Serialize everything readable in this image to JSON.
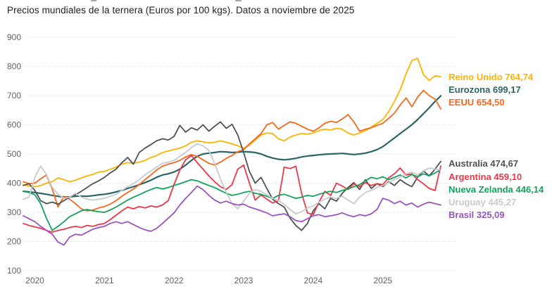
{
  "header": {
    "title": "Precios mundiales de la ternera (Euros por 100 kgs). Datos a noviembre de 2025"
  },
  "chart_data": {
    "type": "line",
    "title": "Precios mundiales de la ternera (Euros por 100 kgs). Datos a noviembre de 2025",
    "xlabel": "",
    "ylabel": "",
    "ylim": [
      100,
      900
    ],
    "y_ticks": [
      100,
      200,
      300,
      400,
      500,
      600,
      700,
      800,
      900
    ],
    "x_tick_labels": [
      "2020",
      "2021",
      "2022",
      "2023",
      "2024",
      "2025"
    ],
    "x_tick_values": [
      2020,
      2021,
      2022,
      2023,
      2024,
      2025
    ],
    "x_start_decimal_year": 2019.833,
    "x_step_months": 1,
    "grid": true,
    "legend_position": "right-edge-labels",
    "series": [
      {
        "name": "Reino Unido",
        "slug": "reino-unido",
        "color": "#FFB300",
        "final_value_label": "764,74",
        "display_label": "Reino Unido 764,74",
        "label_y": 110,
        "values": [
          395,
          390,
          388,
          392,
          400,
          405,
          418,
          412,
          405,
          410,
          418,
          425,
          430,
          438,
          440,
          448,
          455,
          465,
          470,
          468,
          472,
          478,
          488,
          495,
          505,
          510,
          515,
          520,
          528,
          540,
          545,
          542,
          538,
          540,
          545,
          540,
          535,
          528,
          520,
          530,
          548,
          565,
          572,
          570,
          552,
          545,
          558,
          565,
          570,
          568,
          572,
          580,
          585,
          582,
          588,
          585,
          572,
          565,
          572,
          580,
          592,
          605,
          618,
          645,
          680,
          720,
          775,
          820,
          828,
          772,
          752,
          768,
          764.74
        ]
      },
      {
        "name": "Eurozona",
        "slug": "eurozona",
        "color": "#2B6566",
        "final_value_label": "699,17",
        "display_label": "Eurozona 699,17",
        "label_y": 128,
        "values": [
          372,
          370,
          368,
          365,
          362,
          358,
          355,
          352,
          353,
          355,
          356,
          355,
          357,
          360,
          362,
          365,
          370,
          375,
          382,
          388,
          395,
          402,
          410,
          420,
          428,
          432,
          438,
          448,
          462,
          478,
          492,
          500,
          503,
          505,
          508,
          507,
          505,
          506,
          508,
          507,
          505,
          500,
          492,
          486,
          482,
          480,
          482,
          485,
          490,
          493,
          495,
          497,
          499,
          500,
          501,
          502,
          500,
          498,
          500,
          503,
          508,
          515,
          525,
          540,
          555,
          570,
          585,
          600,
          618,
          638,
          658,
          680,
          699.17
        ]
      },
      {
        "name": "EEUU",
        "slug": "eeuu",
        "color": "#F8671C",
        "final_value_label": "654,50",
        "display_label": "EEUU 654,50",
        "label_y": 146,
        "values": [
          405,
          398,
          400,
          415,
          428,
          380,
          318,
          355,
          345,
          330,
          312,
          305,
          308,
          315,
          320,
          328,
          340,
          355,
          368,
          380,
          395,
          412,
          428,
          445,
          458,
          465,
          470,
          478,
          490,
          498,
          492,
          480,
          468,
          462,
          472,
          485,
          495,
          508,
          515,
          535,
          552,
          570,
          600,
          608,
          585,
          598,
          610,
          605,
          595,
          585,
          578,
          590,
          605,
          612,
          608,
          620,
          635,
          610,
          578,
          585,
          590,
          598,
          605,
          622,
          640,
          668,
          692,
          662,
          695,
          718,
          700,
          688,
          654.5
        ]
      },
      {
        "name": "Australia",
        "slug": "australia",
        "color": "#4D5153",
        "final_value_label": "474,67",
        "display_label": "Australia 474,67",
        "label_y": 233,
        "values": [
          392,
          398,
          375,
          340,
          330,
          335,
          328,
          340,
          352,
          360,
          372,
          385,
          398,
          408,
          420,
          435,
          448,
          470,
          488,
          465,
          505,
          520,
          532,
          545,
          552,
          548,
          560,
          598,
          575,
          590,
          582,
          600,
          578,
          595,
          610,
          588,
          602,
          565,
          505,
          440,
          400,
          420,
          382,
          345,
          330,
          318,
          280,
          255,
          238,
          262,
          305,
          330,
          312,
          348,
          338,
          365,
          385,
          402,
          378,
          412,
          382,
          398,
          388,
          405,
          392,
          412,
          398,
          388,
          420,
          442,
          425,
          448,
          474.67
        ]
      },
      {
        "name": "Argentina",
        "slug": "argentina",
        "color": "#EF3648",
        "final_value_label": "459,10",
        "display_label": "Argentina 459,10",
        "label_y": 252,
        "values": [
          262,
          255,
          250,
          245,
          238,
          232,
          238,
          242,
          248,
          252,
          248,
          255,
          252,
          258,
          262,
          275,
          290,
          305,
          318,
          312,
          320,
          315,
          322,
          318,
          325,
          340,
          395,
          445,
          480,
          495,
          470,
          448,
          425,
          405,
          388,
          378,
          395,
          448,
          462,
          400,
          342,
          360,
          345,
          332,
          340,
          455,
          450,
          458,
          365,
          298,
          292,
          335,
          372,
          358,
          400,
          390,
          378,
          398,
          388,
          402,
          392,
          398,
          395,
          418,
          432,
          452,
          428,
          432,
          412,
          398,
          382,
          375,
          459.1
        ]
      },
      {
        "name": "Nueva Zelanda",
        "slug": "nueva-zelanda",
        "color": "#10A35C",
        "final_value_label": "446,14",
        "display_label": "Nueva Zelanda 446,14",
        "label_y": 270,
        "values": [
          372,
          368,
          360,
          330,
          280,
          238,
          252,
          268,
          285,
          295,
          305,
          310,
          305,
          302,
          300,
          308,
          318,
          330,
          342,
          352,
          360,
          370,
          378,
          385,
          380,
          385,
          392,
          398,
          405,
          412,
          408,
          400,
          392,
          385,
          375,
          365,
          358,
          362,
          368,
          372,
          365,
          362,
          355,
          348,
          358,
          362,
          355,
          348,
          352,
          358,
          355,
          362,
          368,
          372,
          368,
          375,
          380,
          388,
          395,
          408,
          420,
          415,
          422,
          412,
          420,
          428,
          418,
          430,
          422,
          432,
          425,
          435,
          446.14
        ]
      },
      {
        "name": "Uruguay",
        "slug": "uruguay",
        "color": "#C6CBD0",
        "final_value_label": "445,27",
        "display_label": "Uruguay 445,27",
        "label_y": 288,
        "values": [
          345,
          352,
          420,
          458,
          430,
          385,
          362,
          348,
          352,
          365,
          352,
          345,
          342,
          345,
          348,
          355,
          362,
          375,
          388,
          398,
          412,
          428,
          442,
          455,
          468,
          472,
          478,
          492,
          505,
          522,
          535,
          528,
          512,
          468,
          415,
          368,
          330,
          312,
          338,
          365,
          378,
          372,
          360,
          348,
          340,
          328,
          310,
          295,
          302,
          315,
          322,
          335,
          345,
          352,
          348,
          355,
          342,
          330,
          352,
          368,
          375,
          385,
          392,
          402,
          412,
          420,
          432,
          438,
          428,
          442,
          452,
          448,
          445.27
        ]
      },
      {
        "name": "Brasil",
        "slug": "brasil",
        "color": "#9C53BE",
        "final_value_label": "325,09",
        "display_label": "Brasil 325,09",
        "label_y": 306,
        "values": [
          288,
          278,
          268,
          252,
          238,
          225,
          198,
          188,
          215,
          225,
          222,
          232,
          242,
          248,
          252,
          262,
          268,
          262,
          268,
          258,
          248,
          240,
          235,
          245,
          262,
          280,
          298,
          325,
          348,
          368,
          390,
          378,
          358,
          342,
          332,
          338,
          330,
          325,
          328,
          318,
          312,
          305,
          298,
          288,
          292,
          295,
          285,
          272,
          268,
          278,
          288,
          292,
          285,
          288,
          292,
          298,
          290,
          285,
          292,
          288,
          295,
          310,
          348,
          342,
          330,
          338,
          325,
          332,
          318,
          328,
          335,
          330,
          325.09
        ]
      }
    ]
  }
}
